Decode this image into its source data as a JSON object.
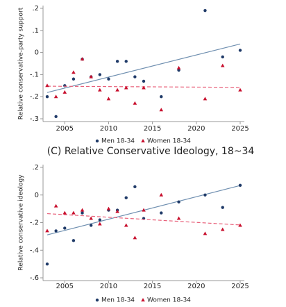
{
  "chart_data": [
    {
      "type": "scatter",
      "y_label": "Relative conservative-party support",
      "x": [
        2003,
        2004,
        2005,
        2006,
        2007,
        2008,
        2009,
        2010,
        2011,
        2012,
        2013,
        2014,
        2016,
        2018,
        2021,
        2023,
        2025
      ],
      "xlim": [
        2003,
        2025
      ],
      "xticks": [
        2005,
        2010,
        2015,
        2020,
        2025
      ],
      "ylim": [
        -0.3,
        0.2
      ],
      "yticks": [
        {
          "value": 0.2,
          "label": ".2"
        },
        {
          "value": 0.1,
          "label": ".1"
        },
        0,
        {
          "value": -0.1,
          "label": "-.1"
        },
        {
          "value": -0.2,
          "label": "-.2"
        },
        {
          "value": -0.3,
          "label": "-.3"
        }
      ],
      "series": [
        {
          "name": "Men 18-34",
          "color": "#1f3a68",
          "fit_color": "#6f8fb0",
          "values": [
            -0.2,
            -0.29,
            -0.15,
            -0.12,
            -0.03,
            -0.11,
            -0.1,
            -0.12,
            -0.04,
            -0.04,
            -0.11,
            -0.13,
            -0.2,
            -0.08,
            0.19,
            -0.02,
            0.01
          ]
        },
        {
          "name": "Women 18-34",
          "color": "#c8102e",
          "fit_color": "#e8607a",
          "values": [
            -0.15,
            -0.2,
            -0.18,
            -0.09,
            -0.03,
            -0.11,
            -0.17,
            -0.21,
            -0.17,
            -0.16,
            -0.23,
            -0.16,
            -0.26,
            -0.07,
            -0.21,
            -0.06,
            -0.17
          ]
        }
      ]
    },
    {
      "type": "scatter",
      "title": "(C) Relative Conservative Ideology, 18~34",
      "y_label": "Relative conservative ideology",
      "x": [
        2003,
        2004,
        2005,
        2006,
        2007,
        2008,
        2009,
        2010,
        2011,
        2012,
        2013,
        2014,
        2016,
        2018,
        2021,
        2023,
        2025
      ],
      "xlim": [
        2003,
        2025
      ],
      "xticks": [
        2005,
        2010,
        2015,
        2020,
        2025
      ],
      "ylim": [
        -0.6,
        0.2
      ],
      "yticks": [
        {
          "value": 0.2,
          "label": ".2"
        },
        0,
        {
          "value": -0.2,
          "label": "-.2"
        },
        {
          "value": -0.4,
          "label": "-.4"
        },
        {
          "value": -0.6,
          "label": "-.6"
        }
      ],
      "series": [
        {
          "name": "Men 18-34",
          "color": "#1f3a68",
          "fit_color": "#6f8fb0",
          "values": [
            -0.5,
            -0.26,
            -0.24,
            -0.33,
            -0.13,
            -0.22,
            -0.18,
            -0.11,
            -0.11,
            -0.02,
            0.06,
            -0.17,
            -0.13,
            -0.05,
            0.0,
            -0.09,
            0.07
          ]
        },
        {
          "name": "Women 18-34",
          "color": "#c8102e",
          "fit_color": "#e8607a",
          "values": [
            -0.26,
            -0.08,
            -0.13,
            -0.13,
            -0.11,
            -0.17,
            -0.21,
            -0.1,
            -0.12,
            -0.22,
            -0.31,
            -0.11,
            0.0,
            -0.17,
            -0.28,
            -0.25,
            -0.22
          ]
        }
      ]
    }
  ]
}
